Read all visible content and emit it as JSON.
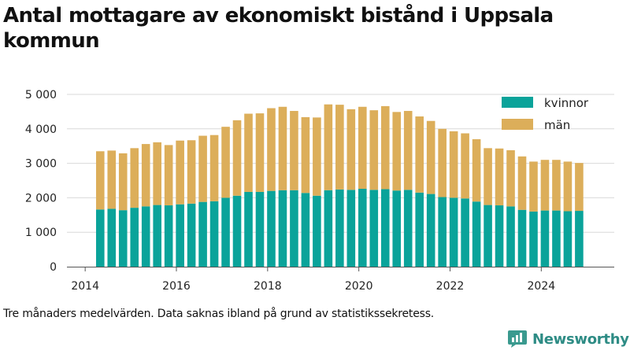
{
  "chart_data": {
    "type": "bar",
    "stacked": true,
    "title": "Antal mottagare av ekonomiskt bistånd i Uppsala kommun",
    "note": "Tre månaders medelvärden. Data saknas ibland på grund av statistikssekretess.",
    "xlabel": "",
    "ylabel": "",
    "xlim": [
      2013.6,
      2025.6
    ],
    "ylim": [
      0,
      5000
    ],
    "x_ticks": [
      2014,
      2016,
      2018,
      2020,
      2022,
      2024
    ],
    "x_tick_labels": [
      "2014",
      "2016",
      "2018",
      "2020",
      "2022",
      "2024"
    ],
    "y_ticks": [
      0,
      1000,
      2000,
      3000,
      4000,
      5000
    ],
    "y_tick_labels": [
      "0",
      "1 000",
      "2 000",
      "3 000",
      "4 000",
      "5 000"
    ],
    "grid": true,
    "legend_position": "top-right",
    "x": [
      2014.33,
      2014.58,
      2014.83,
      2015.08,
      2015.33,
      2015.58,
      2015.83,
      2016.08,
      2016.33,
      2016.58,
      2016.83,
      2017.08,
      2017.33,
      2017.58,
      2017.83,
      2018.08,
      2018.33,
      2018.58,
      2018.83,
      2019.08,
      2019.33,
      2019.58,
      2019.83,
      2020.08,
      2020.33,
      2020.58,
      2020.83,
      2021.08,
      2021.33,
      2021.58,
      2021.83,
      2022.08,
      2022.33,
      2022.58,
      2022.83,
      2023.08,
      2023.33,
      2023.58,
      2023.83,
      2024.08,
      2024.33,
      2024.58,
      2024.83
    ],
    "series": [
      {
        "name": "kvinnor",
        "color": "#0aa39a",
        "values": [
          1660,
          1680,
          1640,
          1710,
          1750,
          1790,
          1780,
          1810,
          1830,
          1880,
          1900,
          2000,
          2060,
          2170,
          2170,
          2200,
          2220,
          2220,
          2140,
          2060,
          2220,
          2240,
          2230,
          2260,
          2230,
          2250,
          2210,
          2230,
          2150,
          2110,
          2020,
          2000,
          1980,
          1890,
          1790,
          1780,
          1750,
          1650,
          1600,
          1630,
          1630,
          1610,
          1620
        ]
      },
      {
        "name": "män",
        "color": "#dcae5a",
        "values": [
          1690,
          1690,
          1650,
          1730,
          1810,
          1820,
          1750,
          1850,
          1840,
          1920,
          1920,
          2060,
          2190,
          2270,
          2280,
          2400,
          2420,
          2300,
          2200,
          2270,
          2490,
          2460,
          2340,
          2380,
          2310,
          2410,
          2280,
          2290,
          2210,
          2120,
          1980,
          1930,
          1890,
          1810,
          1650,
          1650,
          1630,
          1550,
          1450,
          1470,
          1470,
          1440,
          1390
        ]
      }
    ]
  },
  "brand": {
    "name": "Newsworthy"
  }
}
